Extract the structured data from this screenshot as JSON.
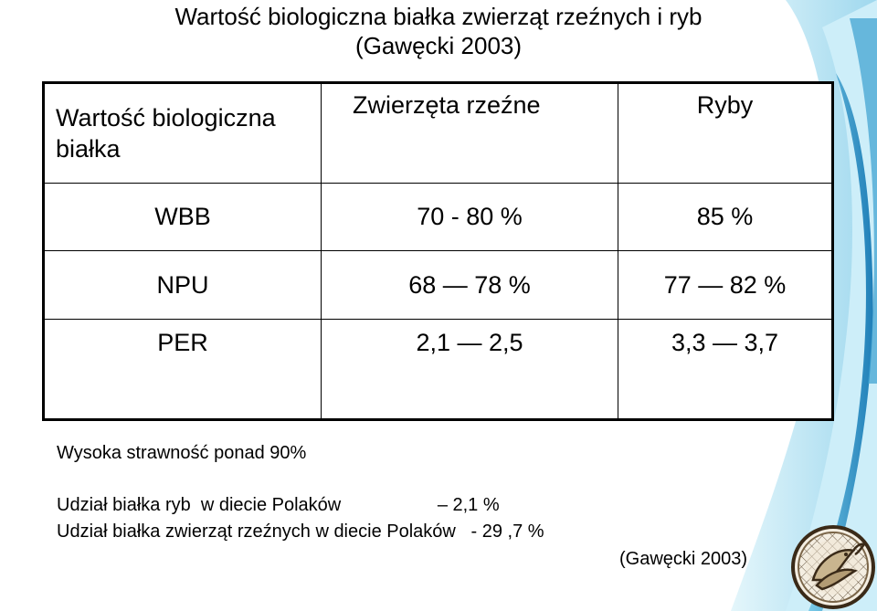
{
  "title": {
    "line1": "Wartość biologiczna białka zwierząt rzeźnych  i ryb",
    "line2": "(Gawęcki 2003)"
  },
  "table": {
    "headers": [
      "Wartość biologiczna białka",
      "Zwierzęta rzeźne",
      "Ryby"
    ],
    "rows": [
      [
        "WBB",
        "70 - 80 %",
        "85 %"
      ],
      [
        "NPU",
        "68 — 78 %",
        "77 — 82 %"
      ],
      [
        "PER",
        "2,1 — 2,5",
        "3,3 — 3,7"
      ]
    ]
  },
  "notes": {
    "digestibility": "Wysoka strawność ponad 90%",
    "fish_share": "Udział białka ryb  w diecie Polaków                   – 2,1 %",
    "meat_share": "Udział białka zwierząt rzeźnych w diecie Polaków   - 29 ,7 %",
    "source": "(Gawęcki 2003)"
  },
  "colors": {
    "accent_light": "#c9ecf7",
    "accent_mid": "#5bbde0",
    "accent_dark": "#1f7fb8",
    "seal_ring": "#3a2a18"
  },
  "icons": {
    "seal": "fish-seal-icon"
  }
}
